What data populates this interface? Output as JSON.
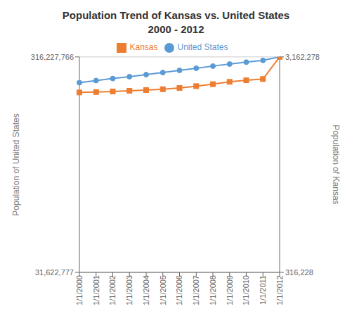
{
  "chart_data": {
    "type": "line",
    "title": "Population Trend of Kansas vs. United States",
    "subtitle": "2000 - 2012",
    "categories": [
      "1/1/2000",
      "1/1/2001",
      "1/1/2002",
      "1/1/2003",
      "1/1/2004",
      "1/1/2005",
      "1/1/2006",
      "1/1/2007",
      "1/1/2008",
      "1/1/2009",
      "1/1/2010",
      "1/1/2011",
      "1/1/2012"
    ],
    "series": [
      {
        "name": "United States",
        "color": "#5B9BD5",
        "marker": "circle",
        "values": [
          282162411,
          284968955,
          287625193,
          290107933,
          292805298,
          295516599,
          298379912,
          301231207,
          304093966,
          306771529,
          309326085,
          311582564,
          316227766
        ]
      },
      {
        "name": "Kansas",
        "color": "#ED7D31",
        "marker": "square",
        "axis": "y2",
        "values": [
          2692473,
          2698478,
          2706006,
          2714854,
          2723507,
          2735510,
          2752029,
          2775997,
          2802134,
          2832704,
          2853118,
          2869731,
          3162278
        ]
      }
    ],
    "ylabel": "Population of United States",
    "y2label": "Population of Kansas",
    "ylim": [
      31622777,
      316227766
    ],
    "yticks": [
      {
        "value": 31622777,
        "label": "31,622,777"
      },
      {
        "value": 316227766,
        "label": "316,227,766"
      }
    ],
    "y2lim": [
      316228,
      3162278
    ],
    "y2ticks": [
      {
        "value": 316228,
        "label": "316,228"
      },
      {
        "value": 3162278,
        "label": "3,162,278"
      }
    ],
    "grid": true,
    "legend": "top"
  }
}
